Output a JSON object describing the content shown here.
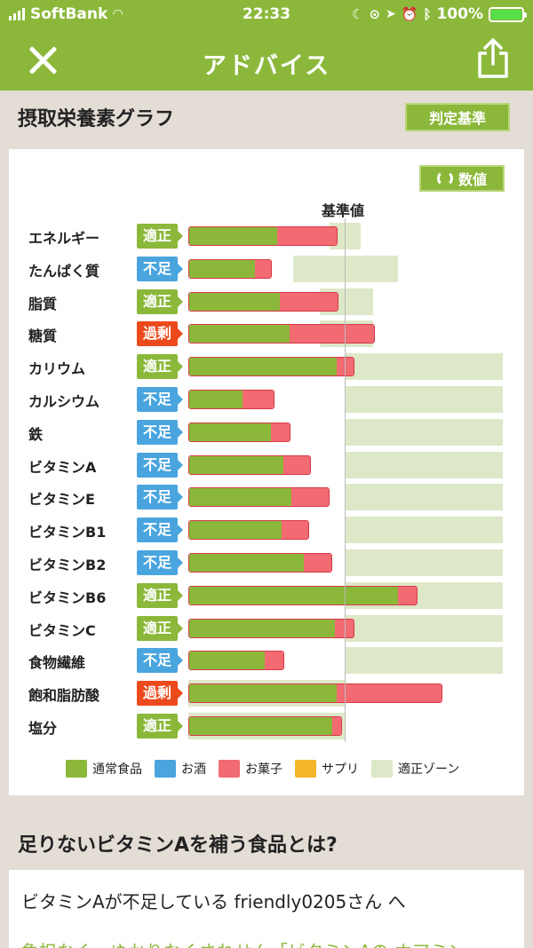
{
  "status_bar": {
    "carrier": "SoftBank",
    "time": "22:33",
    "battery": "100%"
  },
  "nav": {
    "title": "アドバイス",
    "close_icon": "close-icon",
    "share_icon": "share-icon"
  },
  "graph_section": {
    "title": "摂取栄養素グラフ",
    "judge_button": "判定基準",
    "value_button": "数値",
    "baseline_label": "基準値"
  },
  "colors": {
    "food": "#8bb83a",
    "alcohol": "#4aa5df",
    "snack": "#f26a72",
    "supplement": "#f5b72a",
    "zone": "#dde8c8",
    "badge_ok": "#8bb83a",
    "badge_low": "#4aa5df",
    "badge_over": "#ec4a1c"
  },
  "chart_data": {
    "type": "bar",
    "orientation": "horizontal",
    "stacked": true,
    "reference_label": "基準値",
    "reference_value": 100,
    "x_range": [
      0,
      200
    ],
    "categories": [
      "エネルギー",
      "たんぱく質",
      "脂質",
      "糖質",
      "カリウム",
      "カルシウム",
      "鉄",
      "ビタミンA",
      "ビタミンE",
      "ビタミンB1",
      "ビタミンB2",
      "ビタミンB6",
      "ビタミンC",
      "食物繊維",
      "飽和脂肪酸",
      "塩分"
    ],
    "status": [
      "適正",
      "不足",
      "適正",
      "過剰",
      "適正",
      "不足",
      "不足",
      "不足",
      "不足",
      "不足",
      "不足",
      "適正",
      "適正",
      "不足",
      "過剰",
      "適正"
    ],
    "status_types": [
      "ok",
      "low",
      "ok",
      "over",
      "ok",
      "low",
      "low",
      "low",
      "low",
      "low",
      "low",
      "ok",
      "ok",
      "low",
      "over",
      "ok"
    ],
    "zones": [
      [
        90,
        110
      ],
      [
        67,
        134
      ],
      [
        84,
        118
      ],
      [
        84,
        118
      ],
      [
        100,
        200
      ],
      [
        100,
        200
      ],
      [
        100,
        200
      ],
      [
        100,
        200
      ],
      [
        100,
        200
      ],
      [
        100,
        200
      ],
      [
        100,
        200
      ],
      [
        100,
        200
      ],
      [
        100,
        200
      ],
      [
        100,
        200
      ],
      [
        0,
        100
      ],
      [
        0,
        100
      ]
    ],
    "series": [
      {
        "name": "通常食品",
        "values": [
          56,
          42,
          58,
          64,
          94,
          34,
          52,
          60,
          65,
          59,
          73,
          133,
          93,
          48,
          94,
          91
        ]
      },
      {
        "name": "お酒",
        "values": [
          0,
          0,
          0,
          0,
          0,
          0,
          0,
          0,
          0,
          0,
          0,
          0,
          0,
          0,
          0,
          0
        ]
      },
      {
        "name": "お菓子",
        "values": [
          39,
          11,
          38,
          55,
          12,
          21,
          13,
          18,
          25,
          18,
          19,
          13,
          13,
          13,
          68,
          7
        ]
      },
      {
        "name": "サプリ",
        "values": [
          0,
          0,
          0,
          0,
          0,
          0,
          0,
          0,
          0,
          0,
          0,
          0,
          0,
          0,
          0,
          0
        ]
      }
    ],
    "legend": [
      "通常食品",
      "お酒",
      "お菓子",
      "サプリ",
      "適正ゾーン"
    ],
    "legend_position": "bottom"
  },
  "advice_section": {
    "title": "足りないビタミンAを補う食品とは?",
    "line": "ビタミンAが不足している friendly0205さん へ",
    "cut_text": "負担なく、ゆかりなくされせん「ビタミンAの ホアミン"
  }
}
